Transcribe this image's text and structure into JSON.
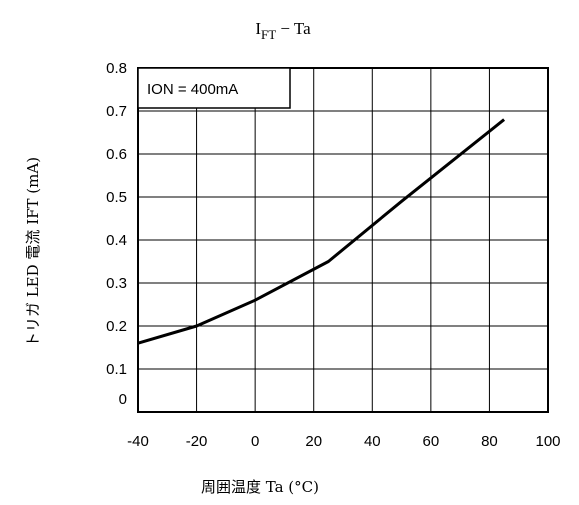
{
  "chart_data": {
    "type": "line",
    "title_main": "I",
    "title_sub": "FT",
    "title_rest": " − Ta",
    "xlabel": "周囲温度 Ta (°C)",
    "ylabel": "トリガ LED 電流 IFT (mA)",
    "xlim": [
      -40,
      100
    ],
    "ylim": [
      0,
      0.8
    ],
    "x_ticks": [
      -40,
      -20,
      0,
      20,
      40,
      60,
      80,
      100
    ],
    "y_ticks": [
      0,
      0.1,
      0.2,
      0.3,
      0.4,
      0.5,
      0.6,
      0.7,
      0.8
    ],
    "x_tick_labels": [
      "-40",
      "-20",
      "0",
      "20",
      "40",
      "60",
      "80",
      "100"
    ],
    "y_tick_labels": [
      "0",
      "0.1",
      "0.2",
      "0.3",
      "0.4",
      "0.5",
      "0.6",
      "0.7",
      "0.8"
    ],
    "grid": true,
    "legend": {
      "text": "ION = 400mA",
      "placement": "top-left"
    },
    "series": [
      {
        "x": [
          -40,
          -20,
          0,
          25,
          50,
          85
        ],
        "y": [
          0.16,
          0.2,
          0.26,
          0.35,
          0.49,
          0.68
        ]
      }
    ]
  }
}
